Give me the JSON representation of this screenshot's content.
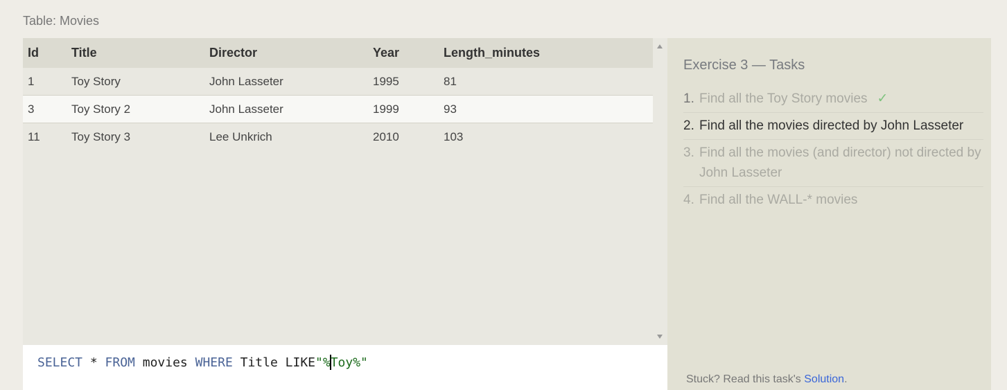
{
  "table_caption": "Table: Movies",
  "results": {
    "columns": [
      "Id",
      "Title",
      "Director",
      "Year",
      "Length_minutes"
    ],
    "rows": [
      [
        "1",
        "Toy Story",
        "John Lasseter",
        "1995",
        "81"
      ],
      [
        "3",
        "Toy Story 2",
        "John Lasseter",
        "1999",
        "93"
      ],
      [
        "11",
        "Toy Story 3",
        "Lee Unkrich",
        "2010",
        "103"
      ]
    ]
  },
  "editor": {
    "kw_select": "SELECT",
    "star": " * ",
    "kw_from": "FROM",
    "table": " movies ",
    "kw_where": "WHERE",
    "clause": " Title LIKE",
    "str_pre": "\"%",
    "str_post": "Toy%\""
  },
  "tasks": {
    "title": "Exercise 3 — Tasks",
    "items": [
      {
        "num": "1.",
        "text": "Find all the Toy Story movies",
        "state": "done",
        "check": "✓"
      },
      {
        "num": "2.",
        "text": "Find all the movies directed by John Lasseter",
        "state": "active"
      },
      {
        "num": "3.",
        "text": "Find all the movies (and director) not directed by John Lasseter",
        "state": "todo"
      },
      {
        "num": "4.",
        "text": "Find all the WALL-* movies",
        "state": "todo"
      }
    ],
    "stuck_prefix": "Stuck? Read this task's ",
    "solution_link": "Solution",
    "stuck_suffix": "."
  },
  "colors": {
    "page_bg": "#efede7",
    "table_header_bg": "#dcdbd1",
    "panel_bg": "#e2e1d4",
    "keyword": "#4a6396",
    "string": "#1c6b1c",
    "link": "#3a66d8",
    "check": "#7ec27e"
  }
}
